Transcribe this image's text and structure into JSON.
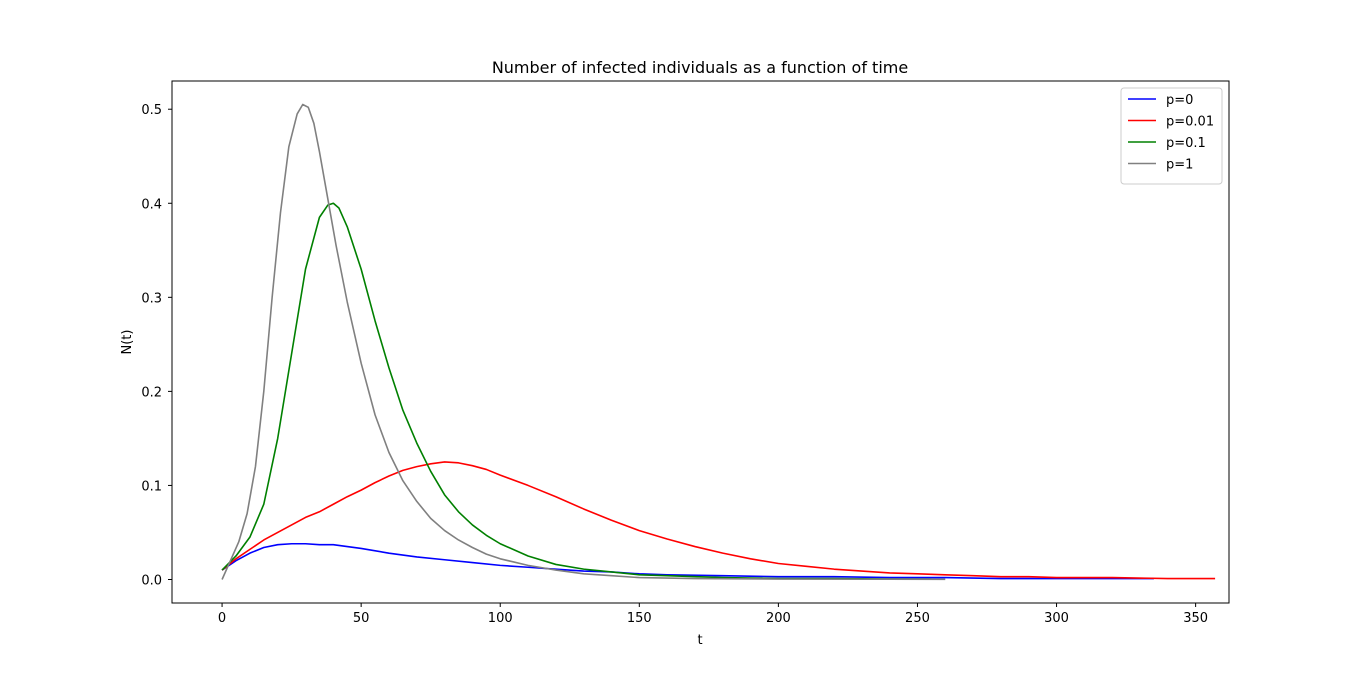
{
  "chart_data": {
    "type": "line",
    "title": "Number of infected individuals as a function of time",
    "xlabel": "t",
    "ylabel": "N(t)",
    "xlim": [
      -18,
      362
    ],
    "ylim": [
      -0.025,
      0.53
    ],
    "xticks": [
      0,
      50,
      100,
      150,
      200,
      250,
      300,
      350
    ],
    "xtick_labels": [
      "0",
      "50",
      "100",
      "150",
      "200",
      "250",
      "300",
      "350"
    ],
    "yticks": [
      0.0,
      0.1,
      0.2,
      0.3,
      0.4,
      0.5
    ],
    "ytick_labels": [
      "0.0",
      "0.1",
      "0.2",
      "0.3",
      "0.4",
      "0.5"
    ],
    "grid": false,
    "legend_position": "top-right",
    "series": [
      {
        "name": "p=0",
        "color": "#0000ff",
        "x": [
          0,
          5,
          10,
          15,
          20,
          25,
          30,
          35,
          40,
          45,
          50,
          60,
          70,
          80,
          90,
          100,
          110,
          120,
          130,
          140,
          150,
          160,
          180,
          200,
          220,
          240,
          260,
          280,
          300,
          320,
          335
        ],
        "y": [
          0.01,
          0.02,
          0.028,
          0.034,
          0.037,
          0.038,
          0.038,
          0.037,
          0.037,
          0.035,
          0.033,
          0.028,
          0.024,
          0.021,
          0.018,
          0.015,
          0.013,
          0.011,
          0.009,
          0.008,
          0.006,
          0.005,
          0.004,
          0.003,
          0.003,
          0.002,
          0.002,
          0.001,
          0.001,
          0.001,
          0.001
        ]
      },
      {
        "name": "p=0.01",
        "color": "#ff0000",
        "x": [
          0,
          5,
          10,
          15,
          20,
          25,
          30,
          35,
          40,
          45,
          50,
          55,
          60,
          65,
          70,
          75,
          80,
          85,
          90,
          95,
          100,
          110,
          120,
          130,
          140,
          150,
          160,
          170,
          180,
          190,
          200,
          210,
          220,
          230,
          240,
          250,
          260,
          270,
          280,
          290,
          300,
          320,
          340,
          357
        ],
        "y": [
          0.01,
          0.022,
          0.032,
          0.042,
          0.05,
          0.058,
          0.066,
          0.072,
          0.08,
          0.088,
          0.095,
          0.103,
          0.11,
          0.116,
          0.12,
          0.123,
          0.125,
          0.124,
          0.121,
          0.117,
          0.111,
          0.1,
          0.088,
          0.075,
          0.063,
          0.052,
          0.043,
          0.035,
          0.028,
          0.022,
          0.017,
          0.014,
          0.011,
          0.009,
          0.007,
          0.006,
          0.005,
          0.004,
          0.003,
          0.003,
          0.002,
          0.002,
          0.001,
          0.001
        ]
      },
      {
        "name": "p=0.1",
        "color": "#008000",
        "x": [
          0,
          5,
          10,
          15,
          20,
          25,
          30,
          35,
          38,
          40,
          42,
          45,
          50,
          55,
          60,
          65,
          70,
          75,
          80,
          85,
          90,
          95,
          100,
          110,
          120,
          130,
          140,
          150,
          160,
          180,
          200,
          220,
          240,
          255
        ],
        "y": [
          0.01,
          0.025,
          0.045,
          0.08,
          0.15,
          0.24,
          0.33,
          0.385,
          0.398,
          0.4,
          0.395,
          0.375,
          0.33,
          0.275,
          0.225,
          0.18,
          0.145,
          0.115,
          0.09,
          0.072,
          0.058,
          0.047,
          0.038,
          0.025,
          0.016,
          0.011,
          0.008,
          0.005,
          0.004,
          0.002,
          0.001,
          0.001,
          0.0005,
          0.0003
        ]
      },
      {
        "name": "p=1",
        "color": "#808080",
        "x": [
          0,
          3,
          6,
          9,
          12,
          15,
          18,
          21,
          24,
          27,
          29,
          31,
          33,
          35,
          38,
          41,
          45,
          50,
          55,
          60,
          65,
          70,
          75,
          80,
          85,
          90,
          95,
          100,
          110,
          120,
          130,
          140,
          150,
          170,
          200,
          230,
          260
        ],
        "y": [
          0.0,
          0.02,
          0.04,
          0.07,
          0.12,
          0.2,
          0.3,
          0.39,
          0.46,
          0.495,
          0.505,
          0.502,
          0.485,
          0.455,
          0.405,
          0.355,
          0.295,
          0.23,
          0.175,
          0.135,
          0.105,
          0.083,
          0.065,
          0.052,
          0.042,
          0.034,
          0.027,
          0.022,
          0.015,
          0.01,
          0.006,
          0.004,
          0.002,
          0.001,
          0.0005,
          0.0003,
          0.0002
        ]
      }
    ]
  }
}
